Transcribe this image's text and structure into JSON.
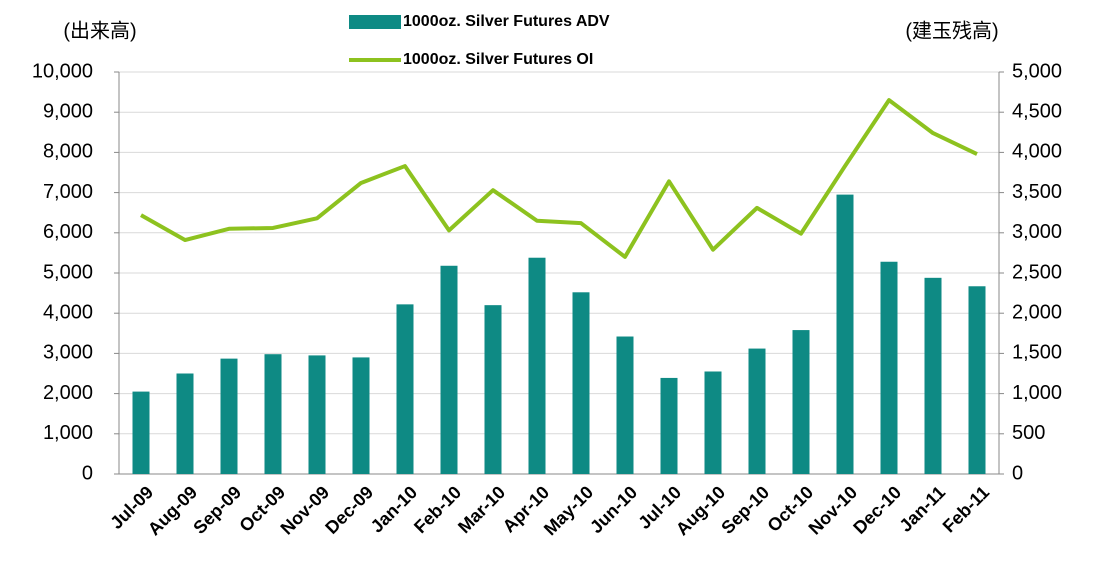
{
  "chart_data": {
    "type": "bar_line",
    "y_label": "(出来高)",
    "y2_label": "(建玉残高)",
    "categories": [
      "Jul-09",
      "Aug-09",
      "Sep-09",
      "Oct-09",
      "Nov-09",
      "Dec-09",
      "Jan-10",
      "Feb-10",
      "Mar-10",
      "Apr-10",
      "May-10",
      "Jun-10",
      "Jul-10",
      "Aug-10",
      "Sep-10",
      "Oct-10",
      "Nov-10",
      "Dec-10",
      "Jan-11",
      "Feb-11"
    ],
    "series": [
      {
        "name": "1000oz. Silver Futures ADV",
        "type": "bar",
        "color": "#0e8a84",
        "values": [
          2050,
          2500,
          2870,
          2980,
          2950,
          2900,
          4220,
          5180,
          4200,
          5380,
          4520,
          3420,
          2390,
          2550,
          3120,
          3580,
          6950,
          5280,
          4880,
          4670
        ]
      },
      {
        "name": "1000oz. Silver Futures OI",
        "type": "line",
        "axis": "y2",
        "color": "#8dc21f",
        "values": [
          3220,
          2910,
          3050,
          3060,
          3180,
          3620,
          3830,
          3030,
          3530,
          3150,
          3120,
          2700,
          3640,
          2790,
          3310,
          2990,
          3830,
          4650,
          4240,
          3980
        ]
      }
    ],
    "ylim": [
      0,
      10000
    ],
    "yticks": [
      0,
      {
        "value": 1000,
        "label": "1,000"
      },
      {
        "value": 2000,
        "label": "2,000"
      },
      {
        "value": 3000,
        "label": "3,000"
      },
      {
        "value": 4000,
        "label": "4,000"
      },
      {
        "value": 5000,
        "label": "5,000"
      },
      {
        "value": 6000,
        "label": "6,000"
      },
      {
        "value": 7000,
        "label": "7,000"
      },
      {
        "value": 8000,
        "label": "8,000"
      },
      {
        "value": 9000,
        "label": "9,000"
      },
      {
        "value": 10000,
        "label": "10,000"
      }
    ],
    "y2lim": [
      0,
      5000
    ],
    "y2ticks": [
      0,
      500,
      {
        "value": 1000,
        "label": "1,000"
      },
      {
        "value": 1500,
        "label": "1,500"
      },
      {
        "value": 2000,
        "label": "2,000"
      },
      {
        "value": 2500,
        "label": "2,500"
      },
      {
        "value": 3000,
        "label": "3,000"
      },
      {
        "value": 3500,
        "label": "3,500"
      },
      {
        "value": 4000,
        "label": "4,000"
      },
      {
        "value": 4500,
        "label": "4,500"
      },
      {
        "value": 5000,
        "label": "5,000"
      }
    ],
    "grid": true
  }
}
